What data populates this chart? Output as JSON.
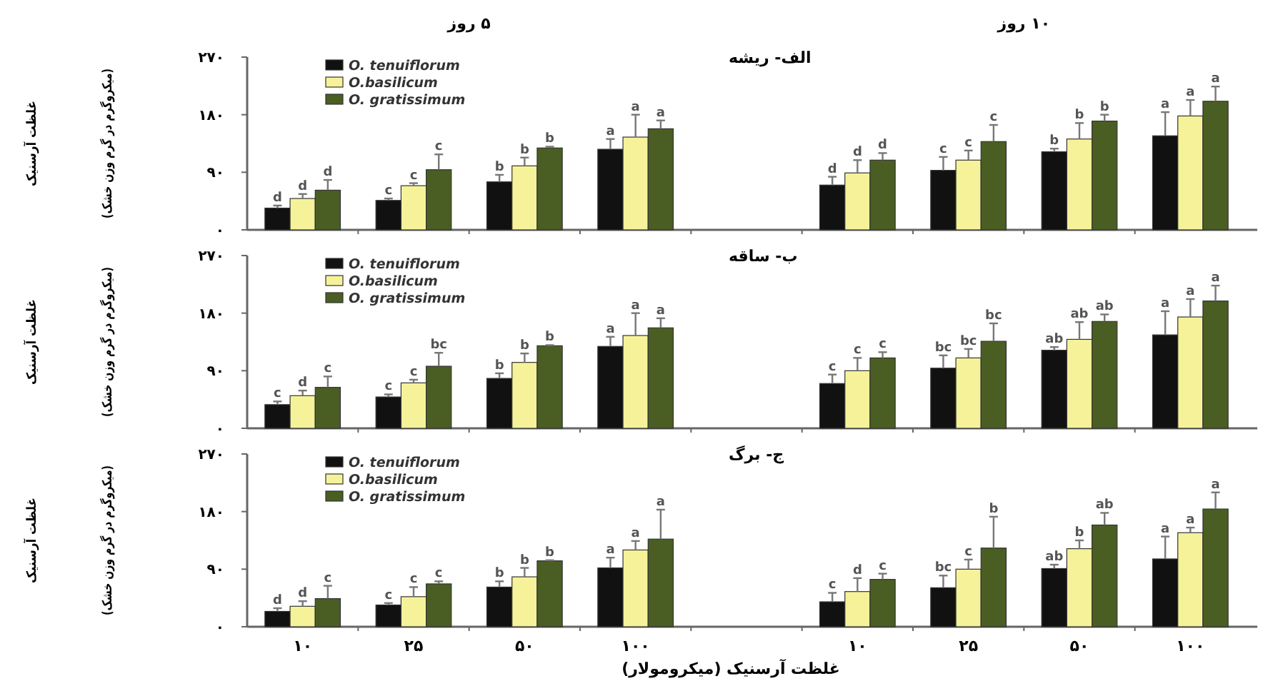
{
  "chart_data": [
    {
      "type": "bar",
      "title": "الف- ریشه",
      "annotations": [
        "۵ روز",
        "۱۰ روز"
      ],
      "ylabel": "غلظت آرسنیک\n(میکروگرم در گرم وزن خشک)",
      "categories": [
        "۱۰",
        "۲۵",
        "۵۰",
        "۱۰۰",
        null,
        "۱۰",
        "۲۵",
        "۵۰",
        "۱۰۰"
      ],
      "ylim": [
        0,
        270
      ],
      "yticks": [
        {
          "value": 0,
          "label": "۰"
        },
        {
          "value": 90,
          "label": "۹۰"
        },
        {
          "value": 180,
          "label": "۱۸۰"
        },
        {
          "value": 270,
          "label": "۲۷۰"
        }
      ],
      "legend": "top left",
      "tick_labels": "y",
      "series": [
        {
          "name": "O. tenuiflorum",
          "color": "#111111",
          "values": [
            34,
            46,
            75,
            126,
            null,
            70,
            93,
            122,
            147
          ],
          "errors": [
            4,
            3,
            11,
            16,
            null,
            13,
            21,
            5,
            37
          ],
          "value_labels": [
            "d",
            "c",
            "b",
            "a",
            null,
            "d",
            "c",
            "b",
            "a"
          ]
        },
        {
          "name": "O.basilicum",
          "color": "#f5f29a",
          "values": [
            49,
            69,
            100,
            145,
            null,
            89,
            109,
            142,
            178
          ],
          "errors": [
            7,
            4,
            13,
            35,
            null,
            20,
            15,
            25,
            25
          ],
          "value_labels": [
            "d",
            "c",
            "b",
            "a",
            null,
            "d",
            "c",
            "b",
            "a"
          ]
        },
        {
          "name": "O. gratissimum",
          "color": "#4a5e23",
          "values": [
            62,
            94,
            128,
            158,
            null,
            109,
            138,
            170,
            201
          ],
          "errors": [
            16,
            24,
            2,
            13,
            null,
            11,
            26,
            10,
            23
          ],
          "value_labels": [
            "d",
            "c",
            "b",
            "a",
            null,
            "d",
            "c",
            "b",
            "a"
          ]
        }
      ]
    },
    {
      "type": "bar",
      "title": "ب- ساقه",
      "ylabel": "غلظت آرسنیک\n(میکروگرم در گرم وزن خشک)",
      "categories": [
        "۱۰",
        "۲۵",
        "۵۰",
        "۱۰۰",
        null,
        "۱۰",
        "۲۵",
        "۵۰",
        "۱۰۰"
      ],
      "ylim": [
        0,
        270
      ],
      "yticks": [
        {
          "value": 0,
          "label": "۰"
        },
        {
          "value": 90,
          "label": "۹۰"
        },
        {
          "value": 180,
          "label": "۱۸۰"
        },
        {
          "value": 270,
          "label": "۲۷۰"
        }
      ],
      "legend": "top left",
      "tick_labels": "y",
      "series": [
        {
          "name": "O. tenuiflorum",
          "color": "#111111",
          "values": [
            37,
            49,
            78,
            128,
            null,
            70,
            94,
            122,
            146
          ],
          "errors": [
            5,
            4,
            8,
            15,
            null,
            14,
            20,
            5,
            37
          ],
          "value_labels": [
            "c",
            "c",
            "b",
            "a",
            null,
            "c",
            "bc",
            "ab",
            "a"
          ]
        },
        {
          "name": "O.basilicum",
          "color": "#f5f29a",
          "values": [
            51,
            71,
            103,
            145,
            null,
            90,
            110,
            139,
            174
          ],
          "errors": [
            8,
            5,
            14,
            35,
            null,
            20,
            14,
            27,
            28
          ],
          "value_labels": [
            "d",
            "c",
            "b",
            "a",
            null,
            "c",
            "bc",
            "ab",
            "a"
          ]
        },
        {
          "name": "O. gratissimum",
          "color": "#4a5e23",
          "values": [
            64,
            97,
            129,
            157,
            null,
            110,
            136,
            167,
            199
          ],
          "errors": [
            17,
            21,
            1,
            15,
            null,
            9,
            28,
            11,
            24
          ],
          "value_labels": [
            "c",
            "bc",
            "b",
            "a",
            null,
            "c",
            "bc",
            "ab",
            "a"
          ]
        }
      ]
    },
    {
      "type": "bar",
      "title": "ج- برگ",
      "ylabel": "غلظت آرسنیک\n(میکروگرم در گرم وزن خشک)",
      "xlabel": "غلظت آرسنیک (میکرومولار)",
      "categories": [
        "۱۰",
        "۲۵",
        "۵۰",
        "۱۰۰",
        null,
        "۱۰",
        "۲۵",
        "۵۰",
        "۱۰۰"
      ],
      "ylim": [
        0,
        270
      ],
      "yticks": [
        {
          "value": 0,
          "label": "۰"
        },
        {
          "value": 90,
          "label": "۹۰"
        },
        {
          "value": 180,
          "label": "۱۸۰"
        },
        {
          "value": 270,
          "label": "۲۷۰"
        }
      ],
      "legend": "top left",
      "series": [
        {
          "name": "O. tenuiflorum",
          "color": "#111111",
          "values": [
            24,
            34,
            62,
            92,
            null,
            39,
            61,
            91,
            106
          ],
          "errors": [
            5,
            3,
            9,
            16,
            null,
            14,
            19,
            6,
            35
          ],
          "value_labels": [
            "d",
            "c",
            "b",
            "a",
            null,
            "c",
            "bc",
            "ab",
            "a"
          ]
        },
        {
          "name": "O.basilicum",
          "color": "#f5f29a",
          "values": [
            32,
            47,
            78,
            120,
            null,
            55,
            90,
            122,
            147
          ],
          "errors": [
            8,
            15,
            14,
            14,
            null,
            21,
            15,
            13,
            8
          ],
          "value_labels": [
            "d",
            "c",
            "b",
            "a",
            null,
            "d",
            "c",
            "b",
            "a"
          ]
        },
        {
          "name": "O. gratissimum",
          "color": "#4a5e23",
          "values": [
            44,
            67,
            103,
            137,
            null,
            74,
            123,
            159,
            184
          ],
          "errors": [
            20,
            4,
            1,
            46,
            null,
            9,
            49,
            19,
            26
          ],
          "value_labels": [
            "c",
            "c",
            "b",
            "a",
            null,
            "c",
            "b",
            "ab",
            "a"
          ]
        }
      ]
    }
  ]
}
